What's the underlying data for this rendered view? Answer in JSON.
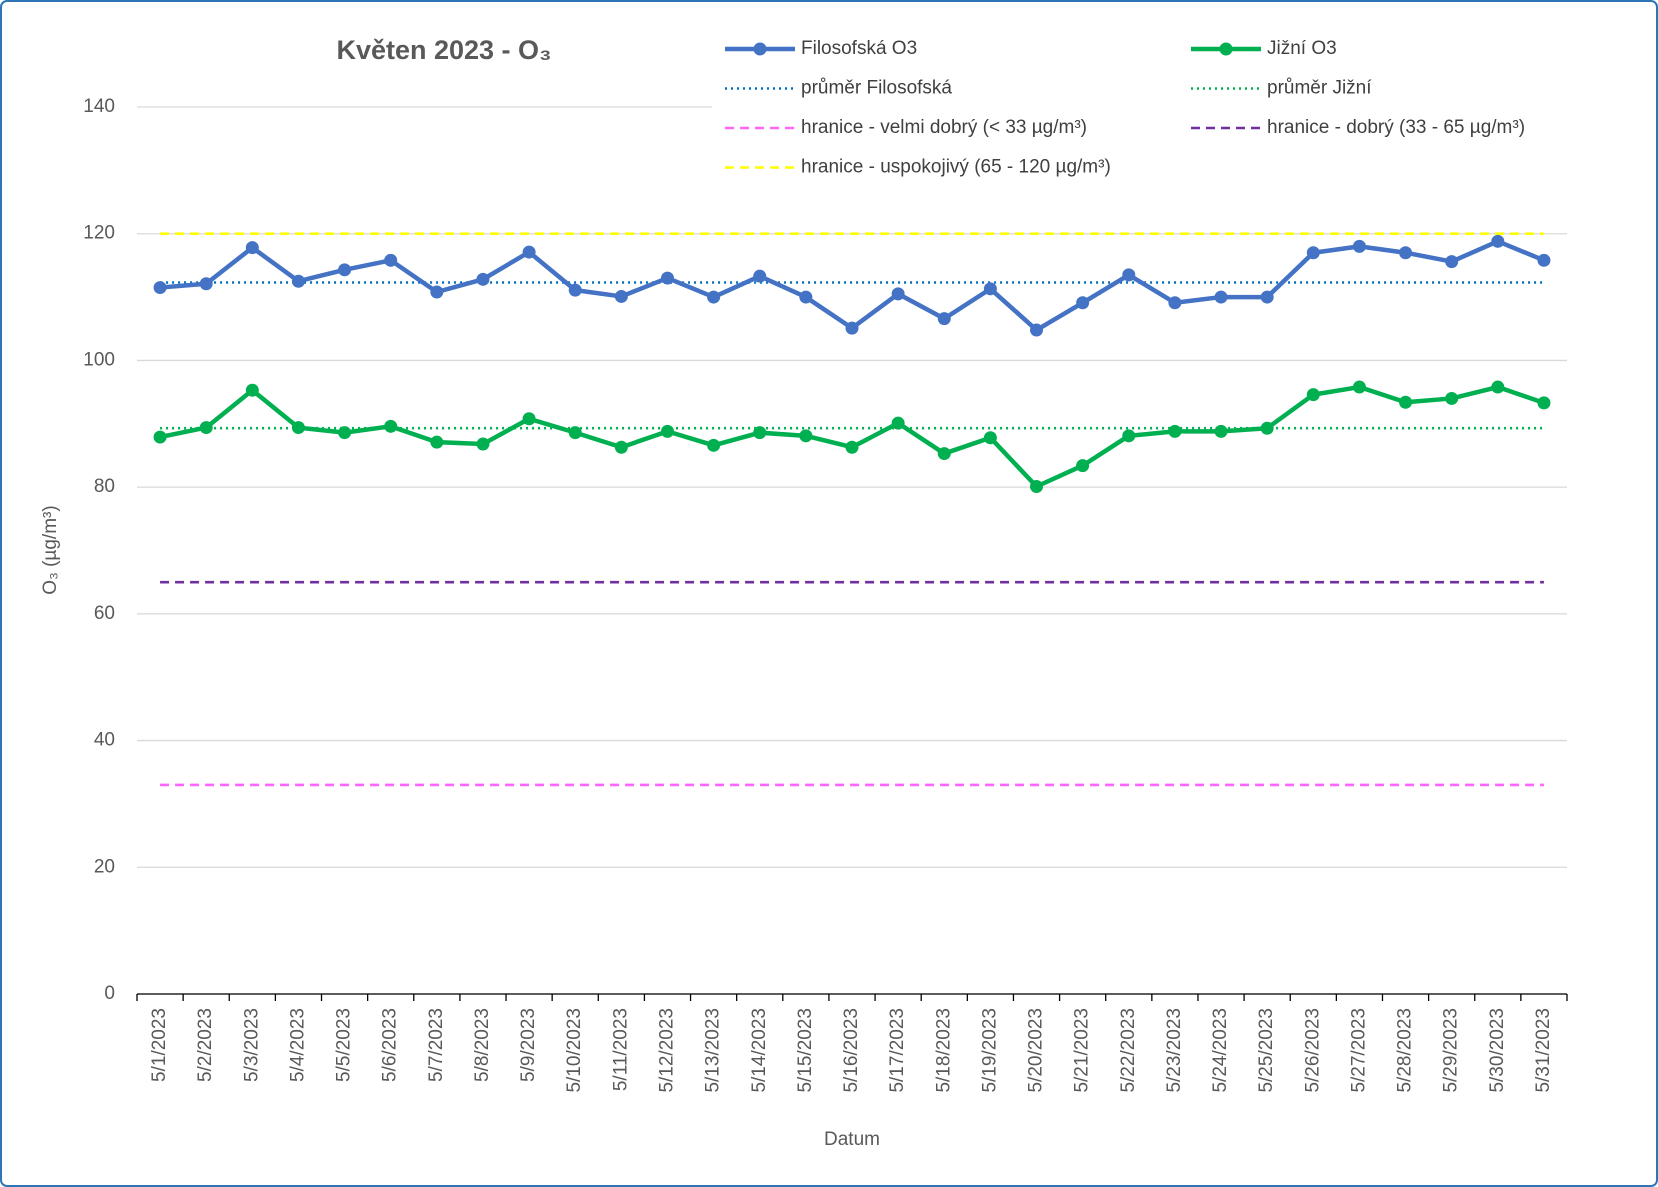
{
  "chart_data": {
    "type": "line",
    "title": "Květen 2023 - O₃",
    "x_label": "Datum",
    "y_label": "O₃ (µg/m³)",
    "categories": [
      "5/1/2023",
      "5/2/2023",
      "5/3/2023",
      "5/4/2023",
      "5/5/2023",
      "5/6/2023",
      "5/7/2023",
      "5/8/2023",
      "5/9/2023",
      "5/10/2023",
      "5/11/2023",
      "5/12/2023",
      "5/13/2023",
      "5/14/2023",
      "5/15/2023",
      "5/16/2023",
      "5/17/2023",
      "5/18/2023",
      "5/19/2023",
      "5/20/2023",
      "5/21/2023",
      "5/22/2023",
      "5/23/2023",
      "5/24/2023",
      "5/25/2023",
      "5/26/2023",
      "5/27/2023",
      "5/28/2023",
      "5/29/2023",
      "5/30/2023",
      "5/31/2023"
    ],
    "series": [
      {
        "name": "Filosofská O3",
        "color": "#4472c4",
        "values": [
          111.5,
          112.1,
          117.8,
          112.5,
          114.3,
          115.8,
          110.8,
          112.8,
          117.1,
          111.1,
          110.1,
          113.0,
          110.0,
          113.3,
          110.0,
          105.1,
          110.5,
          106.6,
          111.3,
          104.8,
          109.1,
          113.5,
          109.1,
          110.0,
          110.0,
          117.0,
          118.0,
          117.0,
          115.6,
          118.8,
          115.8
        ]
      },
      {
        "name": "Jižní O3",
        "color": "#00b050",
        "values": [
          87.9,
          89.4,
          95.3,
          89.4,
          88.6,
          89.6,
          87.1,
          86.8,
          90.8,
          88.6,
          86.3,
          88.8,
          86.6,
          88.6,
          88.1,
          86.3,
          90.1,
          85.3,
          87.8,
          80.1,
          83.4,
          88.1,
          88.8,
          88.8,
          89.3,
          94.6,
          95.8,
          93.4,
          94.0,
          95.8,
          93.3
        ]
      }
    ],
    "reference_lines": [
      {
        "name": "průměr Filosofská",
        "color": "#0070c0",
        "style": "dotted",
        "value": 112.3
      },
      {
        "name": "průměr Jižní",
        "color": "#00b050",
        "style": "dotted",
        "value": 89.3
      },
      {
        "name": "hranice - velmi dobrý (< 33 µg/m³)",
        "color": "#ff66ff",
        "style": "dashed",
        "value": 33
      },
      {
        "name": "hranice - dobrý (33 - 65 µg/m³)",
        "color": "#7030a0",
        "style": "dashed",
        "value": 65
      },
      {
        "name": "hranice - uspokojivý (65 - 120 µg/m³)",
        "color": "#ffff00",
        "style": "dashed",
        "value": 120
      }
    ],
    "ylim": [
      0,
      140
    ],
    "yticks": [
      0,
      20,
      40,
      60,
      80,
      100,
      120,
      140
    ],
    "grid": true,
    "legend": "top-right"
  }
}
